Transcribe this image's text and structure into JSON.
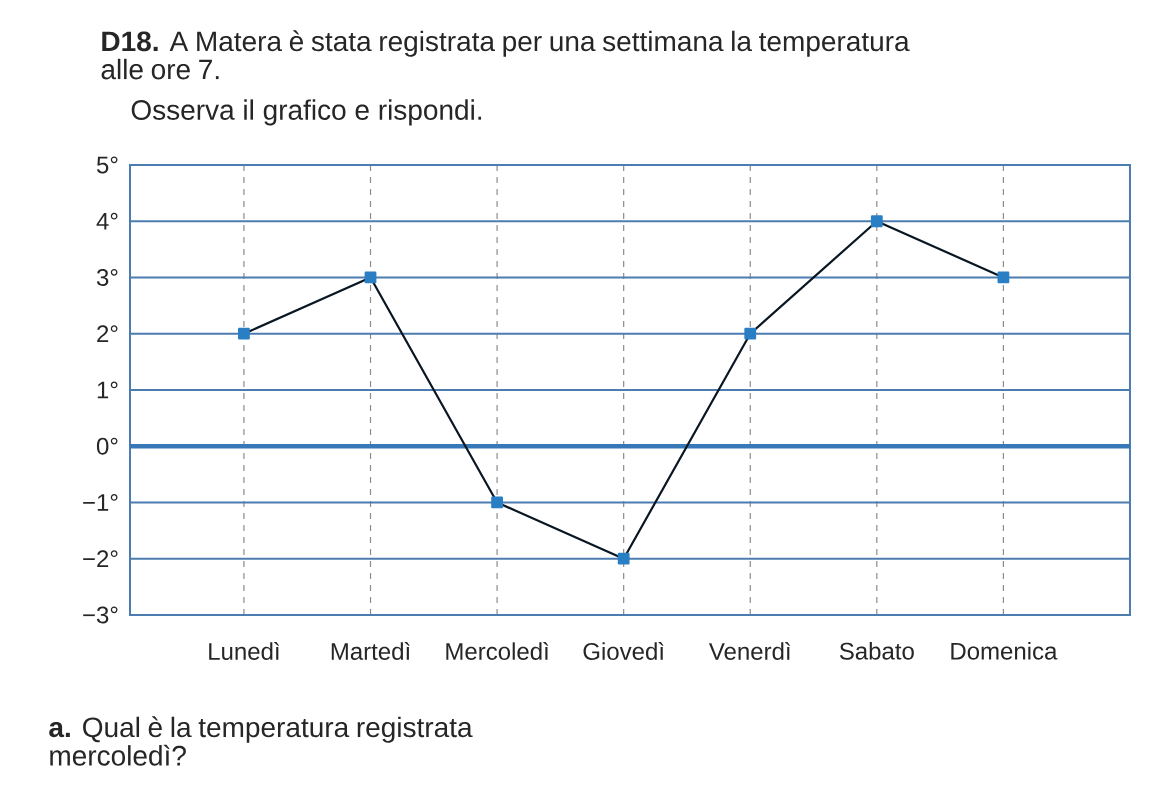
{
  "chart_data": {
    "type": "line",
    "title": "**D18.** A Matera è stata registrata per una settimana la temperatura alle ore 7.",
    "subtitle": "Osserva il grafico e rispondi.",
    "categories": [
      "Lunedì",
      "Martedì",
      "Mercoledì",
      "Giovedì",
      "Venerdì",
      "Sabato",
      "Domenica"
    ],
    "values": [
      2,
      3,
      -1,
      -2,
      2,
      4,
      3
    ],
    "color": "#2a7fc4",
    "ylim": [
      -3,
      5
    ],
    "yticks": [
      {
        "value": -3,
        "label": "−3°"
      },
      {
        "value": -2,
        "label": "−2°"
      },
      {
        "value": -1,
        "label": "−1°"
      },
      {
        "value": 0,
        "label": "0°"
      },
      {
        "value": 1,
        "label": "1°"
      },
      {
        "value": 2,
        "label": "2°"
      },
      {
        "value": 3,
        "label": "3°"
      },
      {
        "value": 4,
        "label": "4°"
      },
      {
        "value": 5,
        "label": "5°"
      }
    ],
    "grid": true,
    "marker": "square",
    "line_style": "solid",
    "ref_lines": [
      {
        "axis": "y",
        "value": 0,
        "color": "#3778b8"
      }
    ],
    "annotations": [
      "**a.** Qual è la temperatura registrata mercoledì?"
    ]
  }
}
